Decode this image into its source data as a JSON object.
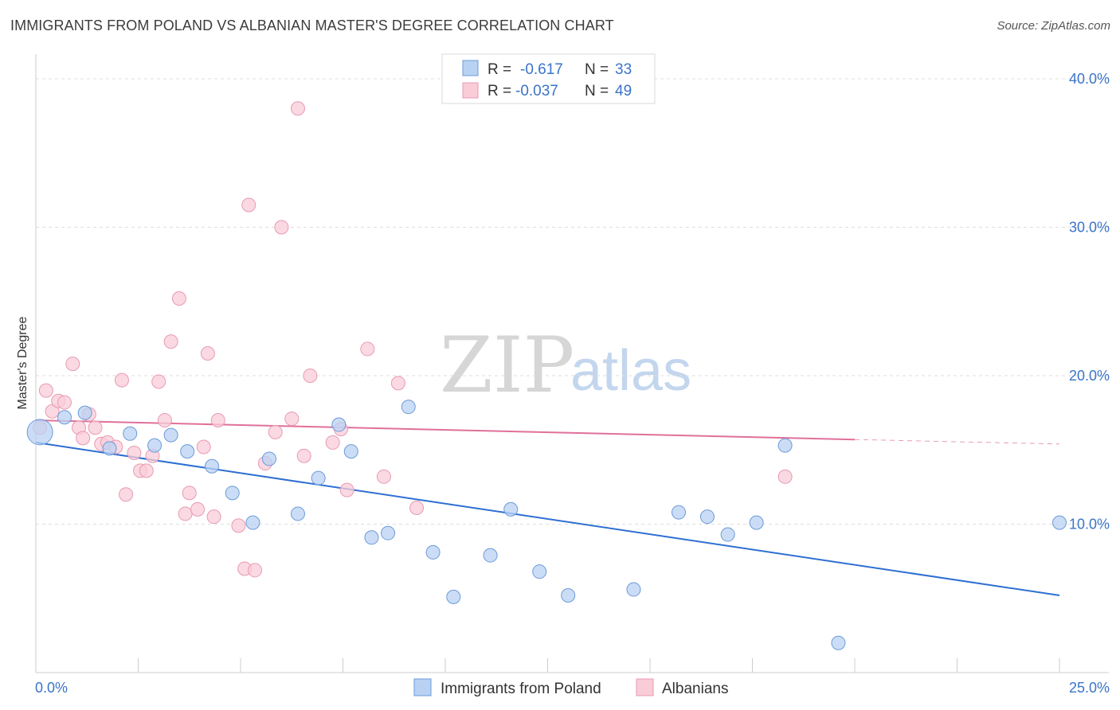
{
  "header": {
    "title": "IMMIGRANTS FROM POLAND VS ALBANIAN MASTER'S DEGREE CORRELATION CHART",
    "source": "Source: ZipAtlas.com"
  },
  "legend": {
    "rows": [
      {
        "r_label": "R =",
        "r_value": "-0.617",
        "n_label": "N =",
        "n_value": "33",
        "color": "#a8c8f0"
      },
      {
        "r_label": "R =",
        "r_value": "-0.037",
        "n_label": "N =",
        "n_value": "49",
        "color": "#f5b6c8"
      }
    ]
  },
  "bottom_legend": [
    "Immigrants from Poland",
    "Albanians"
  ],
  "watermark": {
    "zip": "ZIP",
    "atlas": "atlas"
  },
  "chart_data": {
    "type": "scatter",
    "ylabel": "Master's Degree",
    "xlim": [
      0,
      25
    ],
    "ylim": [
      0,
      40
    ],
    "x_tick_labels": [
      {
        "value": 0,
        "label": "0.0%"
      },
      {
        "value": 25,
        "label": "25.0%"
      }
    ],
    "y_tick_labels": [
      {
        "value": 10,
        "label": "10.0%"
      },
      {
        "value": 20,
        "label": "20.0%"
      },
      {
        "value": 30,
        "label": "30.0%"
      },
      {
        "value": 40,
        "label": "40.0%"
      }
    ],
    "colors": {
      "poland_fill": "#b9d2f3",
      "poland_stroke": "#6c9ad8",
      "poland_line": "#2e6fd2",
      "albania_fill": "#f9ccd8",
      "albania_stroke": "#e89ab2",
      "albania_line": "#e0709a"
    },
    "series": [
      {
        "name": "Immigrants from Poland",
        "trend": {
          "x": [
            0,
            25
          ],
          "y": [
            15.5,
            5.2
          ]
        },
        "points": [
          {
            "x": 0.1,
            "y": 16.2,
            "big": true
          },
          {
            "x": 0.7,
            "y": 17.2
          },
          {
            "x": 1.2,
            "y": 17.5
          },
          {
            "x": 1.8,
            "y": 15.1
          },
          {
            "x": 2.3,
            "y": 16.1
          },
          {
            "x": 2.9,
            "y": 15.3
          },
          {
            "x": 3.3,
            "y": 16.0
          },
          {
            "x": 3.7,
            "y": 14.9
          },
          {
            "x": 4.3,
            "y": 13.9
          },
          {
            "x": 4.8,
            "y": 12.1
          },
          {
            "x": 5.3,
            "y": 10.1
          },
          {
            "x": 5.7,
            "y": 14.4
          },
          {
            "x": 6.4,
            "y": 10.7
          },
          {
            "x": 6.9,
            "y": 13.1
          },
          {
            "x": 7.4,
            "y": 16.7
          },
          {
            "x": 7.7,
            "y": 14.9
          },
          {
            "x": 8.2,
            "y": 9.1
          },
          {
            "x": 8.6,
            "y": 9.4
          },
          {
            "x": 9.1,
            "y": 17.9
          },
          {
            "x": 9.7,
            "y": 8.1
          },
          {
            "x": 10.2,
            "y": 5.1
          },
          {
            "x": 11.1,
            "y": 7.9
          },
          {
            "x": 11.6,
            "y": 11.0
          },
          {
            "x": 12.3,
            "y": 6.8
          },
          {
            "x": 13.0,
            "y": 5.2
          },
          {
            "x": 14.6,
            "y": 5.6
          },
          {
            "x": 15.7,
            "y": 10.8
          },
          {
            "x": 16.4,
            "y": 10.5
          },
          {
            "x": 16.9,
            "y": 9.3
          },
          {
            "x": 17.6,
            "y": 10.1
          },
          {
            "x": 18.3,
            "y": 15.3
          },
          {
            "x": 19.6,
            "y": 2.0
          },
          {
            "x": 25.0,
            "y": 10.1
          }
        ]
      },
      {
        "name": "Albanians",
        "trend": {
          "x": [
            0,
            20
          ],
          "y": [
            17.0,
            15.7
          ]
        },
        "trend_dashed": {
          "x": [
            20,
            25
          ],
          "y": [
            15.7,
            15.4
          ]
        },
        "points": [
          {
            "x": 0.1,
            "y": 16.5
          },
          {
            "x": 0.25,
            "y": 19.0
          },
          {
            "x": 0.4,
            "y": 17.6
          },
          {
            "x": 0.55,
            "y": 18.3
          },
          {
            "x": 0.7,
            "y": 18.2
          },
          {
            "x": 0.9,
            "y": 20.8
          },
          {
            "x": 1.05,
            "y": 16.5
          },
          {
            "x": 1.15,
            "y": 15.8
          },
          {
            "x": 1.3,
            "y": 17.4
          },
          {
            "x": 1.45,
            "y": 16.5
          },
          {
            "x": 1.6,
            "y": 15.4
          },
          {
            "x": 1.75,
            "y": 15.5
          },
          {
            "x": 1.95,
            "y": 15.2
          },
          {
            "x": 2.1,
            "y": 19.7
          },
          {
            "x": 2.2,
            "y": 12.0
          },
          {
            "x": 2.4,
            "y": 14.8
          },
          {
            "x": 2.55,
            "y": 13.6
          },
          {
            "x": 2.7,
            "y": 13.6
          },
          {
            "x": 2.85,
            "y": 14.6
          },
          {
            "x": 3.0,
            "y": 19.6
          },
          {
            "x": 3.15,
            "y": 17.0
          },
          {
            "x": 3.3,
            "y": 22.3
          },
          {
            "x": 3.5,
            "y": 25.2
          },
          {
            "x": 3.65,
            "y": 10.7
          },
          {
            "x": 3.75,
            "y": 12.1
          },
          {
            "x": 3.95,
            "y": 11.0
          },
          {
            "x": 4.1,
            "y": 15.2
          },
          {
            "x": 4.2,
            "y": 21.5
          },
          {
            "x": 4.35,
            "y": 10.5
          },
          {
            "x": 4.45,
            "y": 17.0
          },
          {
            "x": 4.95,
            "y": 9.9
          },
          {
            "x": 5.1,
            "y": 7.0
          },
          {
            "x": 5.2,
            "y": 31.5
          },
          {
            "x": 5.35,
            "y": 6.9
          },
          {
            "x": 5.6,
            "y": 14.1
          },
          {
            "x": 5.85,
            "y": 16.2
          },
          {
            "x": 6.0,
            "y": 30.0
          },
          {
            "x": 6.25,
            "y": 17.1
          },
          {
            "x": 6.4,
            "y": 38.0
          },
          {
            "x": 6.55,
            "y": 14.6
          },
          {
            "x": 6.7,
            "y": 20.0
          },
          {
            "x": 7.25,
            "y": 15.5
          },
          {
            "x": 7.45,
            "y": 16.4
          },
          {
            "x": 7.6,
            "y": 12.3
          },
          {
            "x": 8.1,
            "y": 21.8
          },
          {
            "x": 8.5,
            "y": 13.2
          },
          {
            "x": 8.85,
            "y": 19.5
          },
          {
            "x": 9.3,
            "y": 11.1
          },
          {
            "x": 18.3,
            "y": 13.2
          }
        ]
      }
    ]
  }
}
